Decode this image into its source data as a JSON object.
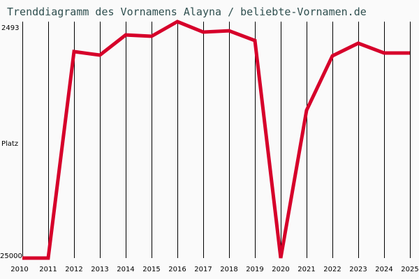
{
  "title": "Trenddiagramm des Vornamens Alayna / beliebte-Vornamen.de",
  "y_axis": {
    "top_label": "2493",
    "middle_label": "Platz",
    "bottom_label": "25000"
  },
  "colors": {
    "line": "#d6002a",
    "title": "#2f4f4f",
    "grid": "#000000",
    "background": "#fafafa"
  },
  "chart_data": {
    "type": "line",
    "title": "Trenddiagramm des Vornamens Alayna / beliebte-Vornamen.de",
    "xlabel": "",
    "ylabel": "Platz",
    "y_inverted": true,
    "ylim": [
      25000,
      2493
    ],
    "grid": "vertical",
    "legend": "none",
    "x": [
      "2010",
      "2011",
      "2012",
      "2013",
      "2014",
      "2015",
      "2016",
      "2017",
      "2018",
      "2019",
      "2020",
      "2021",
      "2022",
      "2023",
      "2024",
      "2025"
    ],
    "series": [
      {
        "name": "Alayna",
        "values": [
          25000,
          25000,
          5350,
          5680,
          3760,
          3890,
          2493,
          3490,
          3360,
          4290,
          25000,
          10930,
          5750,
          4550,
          5480,
          5480
        ]
      }
    ]
  }
}
